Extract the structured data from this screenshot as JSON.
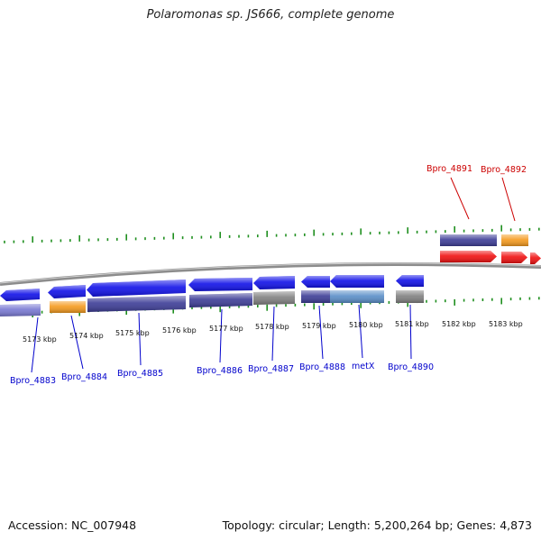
{
  "title": "Polaromonas sp. JS666, complete genome",
  "footer": {
    "accession": "Accession: NC_007948",
    "summary": "Topology: circular; Length: 5,200,264 bp; Genes: 4,873"
  },
  "colors": {
    "background": "#ffffff",
    "backbone": "#8c8c8c",
    "tick": "#1f8f1f",
    "label_bottom": "#0000cc",
    "label_top": "#cc0000",
    "gene_blue": "#1010e8",
    "gene_navy": "#3c3c96",
    "gene_lavender": "#7878d2",
    "gene_orange": "#f59a1e",
    "gene_gray": "#808080",
    "gene_steel": "#5a8ec8",
    "gene_red": "#f01010"
  },
  "kbp_labels": [
    "5173 kbp",
    "5174 kbp",
    "5175 kbp",
    "5176 kbp",
    "5177 kbp",
    "5178 kbp",
    "5179 kbp",
    "5180 kbp",
    "5181 kbp",
    "5182 kbp",
    "5183 kbp"
  ],
  "top_gene_labels": [
    "Bpro_4891",
    "Bpro_4892"
  ],
  "bottom_gene_labels": [
    "Bpro_4883",
    "Bpro_4884",
    "Bpro_4885",
    "Bpro_4886",
    "Bpro_4887",
    "Bpro_4888",
    "metX",
    "Bpro_4890"
  ]
}
